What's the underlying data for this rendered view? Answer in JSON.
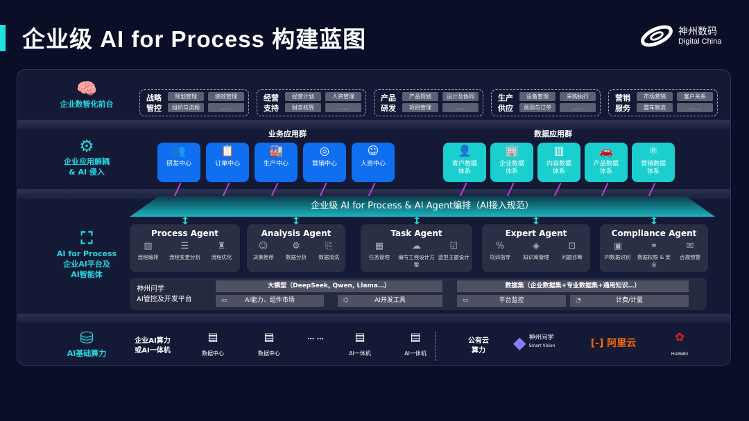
{
  "title": "企业级 AI for Process 构建蓝图",
  "logo": {
    "cn": "神州数码",
    "en": "Digital China"
  },
  "layers": [
    {
      "label": "企业数智化前台",
      "icon": "brain-icon"
    },
    {
      "label": "企业应用解耦\n& AI 侵入",
      "icon": "molecule-icon"
    },
    {
      "label": "AI for Process\n企业AI平台及\nAI智能体",
      "icon": "user-scan-icon"
    },
    {
      "label": "AI基础算力",
      "icon": "database-icon"
    }
  ],
  "front_groups": [
    {
      "label": "战略\n管控",
      "items": [
        "规划管理",
        "绩效管理",
        "组织与流程",
        "……"
      ]
    },
    {
      "label": "经营\n支持",
      "items": [
        "经营计划",
        "人资管理",
        "财务核算",
        "……"
      ]
    },
    {
      "label": "产品\n研发",
      "items": [
        "产品规划",
        "设计及协同",
        "项目管理",
        "……"
      ]
    },
    {
      "label": "生产\n供应",
      "items": [
        "设备管理",
        "采购执行",
        "预测与订单",
        "……"
      ]
    },
    {
      "label": "营销\n服务",
      "items": [
        "市场营销",
        "客户关系",
        "整车物流",
        "……"
      ]
    }
  ],
  "business_apps": {
    "title": "业务应用群",
    "color": "#0f6ff0",
    "items": [
      {
        "label": "研发中心",
        "icon": "team-icon"
      },
      {
        "label": "订单中心",
        "icon": "clipboard-icon"
      },
      {
        "label": "生产中心",
        "icon": "factory-icon"
      },
      {
        "label": "营销中心",
        "icon": "target-icon"
      },
      {
        "label": "人资中心",
        "icon": "people-icon"
      }
    ]
  },
  "data_apps": {
    "title": "数据应用群",
    "color": "#1ccfcf",
    "items": [
      {
        "label": "客户数据\n体系",
        "icon": "user-icon"
      },
      {
        "label": "企业数据\n体系",
        "icon": "building-icon"
      },
      {
        "label": "内容数据\n体系",
        "icon": "books-icon"
      },
      {
        "label": "产品数据\n体系",
        "icon": "car-icon"
      },
      {
        "label": "营销数据\n体系",
        "icon": "atom-icon"
      }
    ]
  },
  "banner": "企业级 AI for Process & AI Agent编排（AI接入规范）",
  "agents": [
    {
      "name": "Process Agent",
      "items": [
        "流程编排",
        "流程变更分析",
        "流程优化"
      ]
    },
    {
      "name": "Analysis Agent",
      "items": [
        "决策推荐",
        "数据分析",
        "数据清洗"
      ]
    },
    {
      "name": "Task Agent",
      "items": [
        "任务管理",
        "编写工程设计方案",
        "造型主题设计"
      ]
    },
    {
      "name": "Expert Agent",
      "items": [
        "培训指导",
        "知识库管理",
        "问题诊断"
      ]
    },
    {
      "name": "Compliance Agent",
      "items": [
        "PI数据识别",
        "数据权限 & 安全",
        "合规预警"
      ]
    }
  ],
  "platform": {
    "label": "神州问学\nAI管控及开发平台",
    "llm": "大模型（DeepSeek, Qwen, Llama…）",
    "dataset": "数据集（企业数据集+专业数据集+通用知识…）",
    "tools": [
      "AI能力、组件市场",
      "AI开发工具",
      "平台监控",
      "计费/计量"
    ]
  },
  "infra": {
    "label": "企业AI算力\n或AI一体机",
    "items": [
      "数据中心",
      "数据中心",
      "AI一体机",
      "AI一体机"
    ],
    "ellipsis": "… …",
    "cloud_label": "公有云\n算力",
    "vendors": [
      {
        "name": "神州问学",
        "sub": "Smart Vision"
      },
      {
        "name": "阿里云"
      },
      {
        "name": "HUAWEI"
      }
    ]
  }
}
